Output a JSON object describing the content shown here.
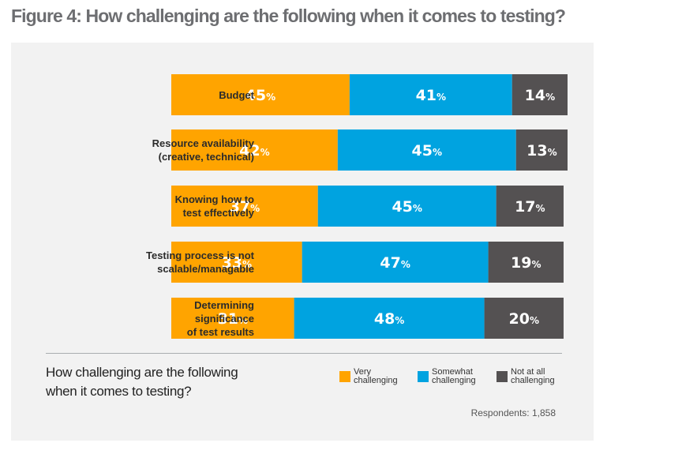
{
  "title": "Figure 4: How challenging are the following when it comes to testing?",
  "chart_data": {
    "type": "bar",
    "orientation": "horizontal",
    "stacked": true,
    "title": "Figure 4: How challenging are the following when it comes to testing?",
    "subtitle": "How challenging are the following when it comes to testing?",
    "categories": [
      [
        "Budget"
      ],
      [
        "Resource availability",
        "(creative, technical)"
      ],
      [
        "Knowing how to",
        "test effectively"
      ],
      [
        "Testing process is not",
        "scalable/managable"
      ],
      [
        "Determining",
        "significance",
        "of test results"
      ]
    ],
    "series": [
      {
        "name": "Very challenging",
        "color": "#ffa400",
        "values": [
          45,
          42,
          37,
          33,
          31
        ]
      },
      {
        "name": "Somewhat challenging",
        "color": "#00a3e0",
        "values": [
          41,
          45,
          45,
          47,
          48
        ]
      },
      {
        "name": "Not at all challenging",
        "color": "#545152",
        "values": [
          14,
          13,
          17,
          19,
          20
        ]
      }
    ],
    "value_suffix": "%",
    "xlim": [
      0,
      100
    ],
    "grid": false,
    "legend_position": "bottom-right",
    "note": "Respondents: 1,858"
  },
  "legend": [
    {
      "line1": "Very",
      "line2": "challenging",
      "color": "#ffa400"
    },
    {
      "line1": "Somewhat",
      "line2": "challenging",
      "color": "#00a3e0"
    },
    {
      "line1": "Not at all",
      "line2": "challenging",
      "color": "#545152"
    }
  ],
  "question": {
    "line1": "How challenging are the following",
    "line2": "when it comes to testing?"
  },
  "respondents": "Respondents: 1,858"
}
